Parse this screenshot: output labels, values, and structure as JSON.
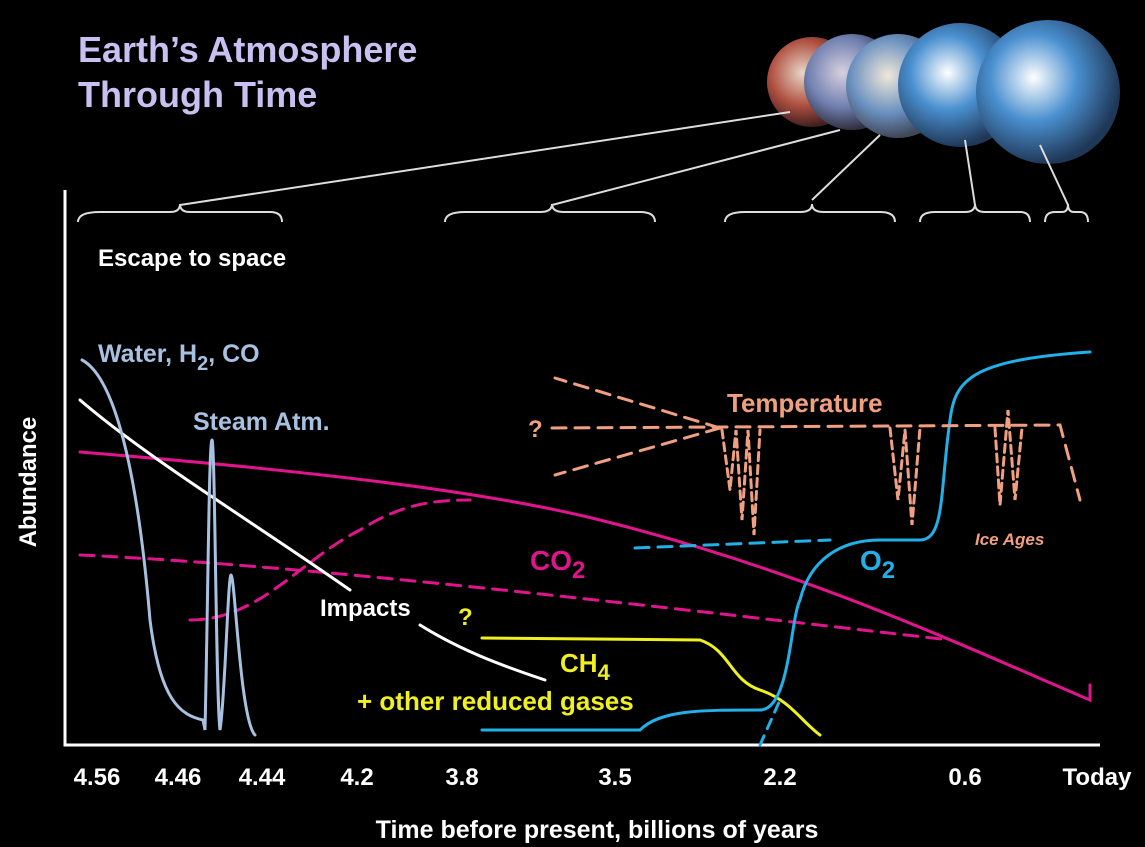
{
  "title": [
    "Earth’s Atmosphere",
    "Through Time"
  ],
  "labels": {
    "escape": "Escape to space",
    "water": [
      "Water, H",
      "2",
      ", CO"
    ],
    "steam": "Steam Atm.",
    "temperature": "Temperature",
    "temperature_q": "?",
    "ice_ages": "Ice Ages",
    "co2": [
      "CO",
      "2"
    ],
    "o2": [
      "O",
      "2"
    ],
    "impacts": "Impacts",
    "ch4_q": "?",
    "ch4": [
      "CH",
      "4"
    ],
    "reduced": "+ other reduced gases"
  },
  "y_axis_label": "Abundance",
  "x_axis_label": "Time before present, billions of years",
  "x_ticks": [
    "4.56",
    "4.46",
    "4.44",
    "4.2",
    "3.8",
    "3.5",
    "2.2",
    "0.6",
    "Today"
  ]
}
